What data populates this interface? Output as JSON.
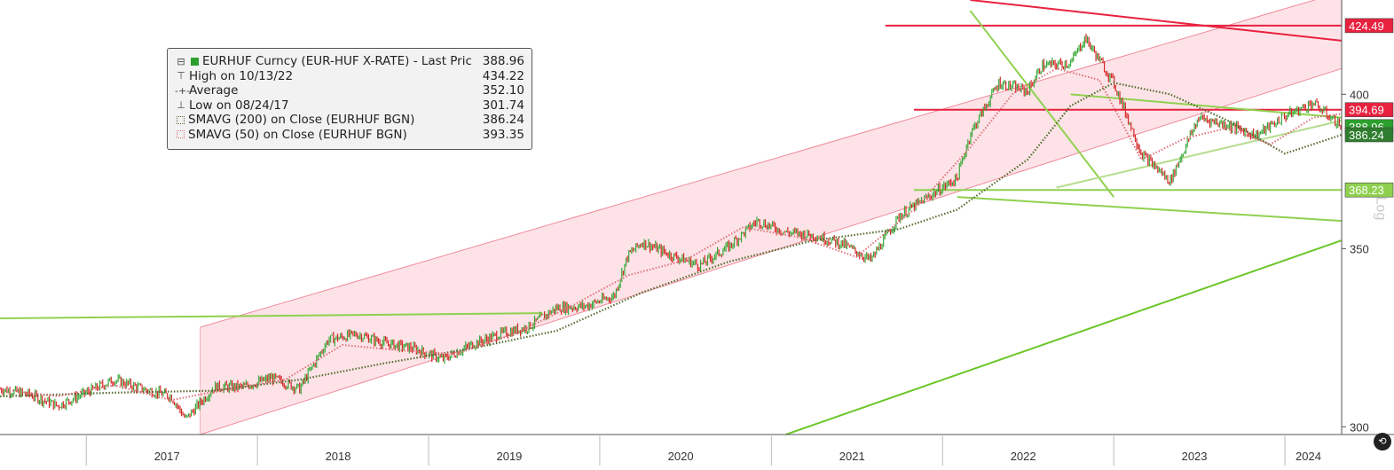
{
  "chart_data": {
    "type": "line",
    "x_range": [
      "2016-07-01",
      "2024-05-01"
    ],
    "ylim": [
      298,
      434
    ],
    "y_ticks": [
      300,
      350,
      400
    ],
    "x_tick_labels": [
      "2017",
      "2018",
      "2019",
      "2020",
      "2021",
      "2022",
      "2023",
      "2024"
    ],
    "legend": {
      "position": "top-left",
      "entries": [
        {
          "name": "EURHUF Curncy (EUR-HUF X-RATE) - Last Price",
          "value": "388.96"
        },
        {
          "name": "High on 10/13/22",
          "value": "434.22"
        },
        {
          "name": "Average",
          "value": "352.10"
        },
        {
          "name": "Low on 08/24/17",
          "value": "301.74"
        },
        {
          "name": "SMAVG (200)  on Close (EURHUF BGN)",
          "value": "386.24"
        },
        {
          "name": "SMAVG (50)  on Close (EURHUF BGN)",
          "value": "393.35"
        }
      ]
    },
    "series": [
      {
        "name": "EURHUF Curncy (EUR-HUF X-RATE) - Last Price",
        "x": [
          "2016-07",
          "2016-09",
          "2016-11",
          "2017-01",
          "2017-03",
          "2017-05",
          "2017-07",
          "2017-08",
          "2017-10",
          "2017-12",
          "2018-02",
          "2018-04",
          "2018-06",
          "2018-08",
          "2018-10",
          "2018-12",
          "2019-02",
          "2019-04",
          "2019-06",
          "2019-08",
          "2019-10",
          "2019-12",
          "2020-02",
          "2020-03",
          "2020-04",
          "2020-06",
          "2020-08",
          "2020-10",
          "2020-12",
          "2021-02",
          "2021-04",
          "2021-06",
          "2021-08",
          "2021-10",
          "2021-12",
          "2022-02",
          "2022-03",
          "2022-05",
          "2022-07",
          "2022-08",
          "2022-10",
          "2022-11",
          "2023-01",
          "2023-03",
          "2023-05",
          "2023-07",
          "2023-09",
          "2023-11",
          "2024-01",
          "2024-03",
          "2024-05"
        ],
        "values": [
          310.0,
          308.5,
          305.5,
          309.0,
          312.5,
          310.0,
          308.0,
          302.0,
          310.5,
          310.5,
          313.0,
          310.0,
          323.5,
          325.0,
          322.5,
          321.0,
          318.0,
          322.0,
          325.0,
          327.0,
          332.5,
          333.0,
          336.0,
          348.0,
          352.0,
          348.0,
          345.0,
          350.5,
          358.5,
          355.0,
          354.0,
          351.5,
          346.5,
          360.0,
          366.0,
          372.0,
          386.5,
          404.0,
          401.0,
          410.0,
          411.0,
          420.0,
          404.0,
          380.0,
          371.0,
          392.0,
          389.5,
          386.0,
          392.5,
          397.0,
          388.96
        ]
      },
      {
        "name": "SMAVG (200)  on Close (EURHUF BGN)",
        "x": [
          "2016-07",
          "2017-03",
          "2017-10",
          "2018-04",
          "2018-10",
          "2019-04",
          "2019-10",
          "2020-04",
          "2020-10",
          "2021-04",
          "2021-10",
          "2022-02",
          "2022-07",
          "2022-10",
          "2023-01",
          "2023-05",
          "2023-09",
          "2024-01",
          "2024-05"
        ],
        "values": [
          308.0,
          309.0,
          309.5,
          312.5,
          317.0,
          321.0,
          326.0,
          337.0,
          346.0,
          352.5,
          356.0,
          362.0,
          378.0,
          396.0,
          404.0,
          400.0,
          391.0,
          380.0,
          386.24
        ]
      },
      {
        "name": "SMAVG (50)  on Close (EURHUF BGN)",
        "x": [
          "2016-07",
          "2016-11",
          "2017-03",
          "2017-07",
          "2017-11",
          "2018-03",
          "2018-07",
          "2018-11",
          "2019-03",
          "2019-07",
          "2019-11",
          "2020-03",
          "2020-07",
          "2020-11",
          "2021-03",
          "2021-07",
          "2021-11",
          "2022-03",
          "2022-06",
          "2022-09",
          "2022-12",
          "2023-03",
          "2023-06",
          "2023-09",
          "2023-12",
          "2024-03",
          "2024-05"
        ],
        "values": [
          310.0,
          308.0,
          311.0,
          307.0,
          310.0,
          312.5,
          322.0,
          320.5,
          319.5,
          325.0,
          333.0,
          342.0,
          346.5,
          356.5,
          353.5,
          347.5,
          362.0,
          382.0,
          400.5,
          409.0,
          405.0,
          378.0,
          385.0,
          388.5,
          383.0,
          392.0,
          393.35
        ]
      }
    ],
    "price_tags": [
      {
        "label": "424.49",
        "value": 424.49,
        "color": "#e8213f"
      },
      {
        "label": "394.69",
        "value": 394.69,
        "color": "#e8213f"
      },
      {
        "label": "388.96",
        "value": 388.96,
        "color": "#2ca02c"
      },
      {
        "label": "386.24",
        "value": 386.24,
        "color": "#2e7d2e"
      },
      {
        "label": "368.23",
        "value": 368.23,
        "color": "#8fd14f"
      }
    ],
    "channel": {
      "upper": {
        "from": [
          "2017-09",
          327
        ],
        "to": [
          "2024-05",
          437
        ]
      },
      "lower": {
        "from": [
          "2017-09",
          298
        ],
        "to": [
          "2024-05",
          409
        ]
      }
    },
    "lines": [
      {
        "from": [
          "2016-07",
          329.5
        ],
        "to": [
          "2019-09",
          331.0
        ],
        "color": "#8fd14f"
      },
      {
        "from": [
          "2021-11",
          368.23
        ],
        "to": [
          "2024-05",
          368.23
        ],
        "color": "#8fd14f"
      },
      {
        "from": [
          "2021-09",
          424.49
        ],
        "to": [
          "2024-05",
          424.49
        ],
        "color": "#e8213f"
      },
      {
        "from": [
          "2021-11",
          394.69
        ],
        "to": [
          "2024-05",
          394.69
        ],
        "color": "#e8213f"
      },
      {
        "from": [
          "2022-02",
          366.0
        ],
        "to": [
          "2024-05",
          358.5
        ],
        "color": "#8fd14f"
      },
      {
        "from": [
          "2021-02",
          298.0
        ],
        "to": [
          "2024-05",
          352.5
        ],
        "color": "#6cc62a"
      },
      {
        "from": [
          "2022-03",
          430.0
        ],
        "to": [
          "2023-01",
          366.0
        ],
        "color": "#8fd14f"
      },
      {
        "from": [
          "2022-03",
          434.0
        ],
        "to": [
          "2024-05",
          419.0
        ],
        "color": "#e8213f"
      },
      {
        "from": [
          "2022-10",
          400.0
        ],
        "to": [
          "2024-05",
          392.0
        ],
        "color": "#8fd14f"
      },
      {
        "from": [
          "2022-09",
          369.0
        ],
        "to": [
          "2024-05",
          391.0
        ],
        "color": "#b5dd8c"
      }
    ],
    "y_axis_side_label": "Log"
  },
  "colors": {
    "up_bar": "#3aa83a",
    "down_bar": "#d62728",
    "channel_fill": "#fde3e7",
    "channel_edge": "#f08a9a",
    "sma200": "#556b2f",
    "sma50": "#e0707a",
    "axis": "#555555"
  },
  "corner_button_icon": "refresh-icon"
}
